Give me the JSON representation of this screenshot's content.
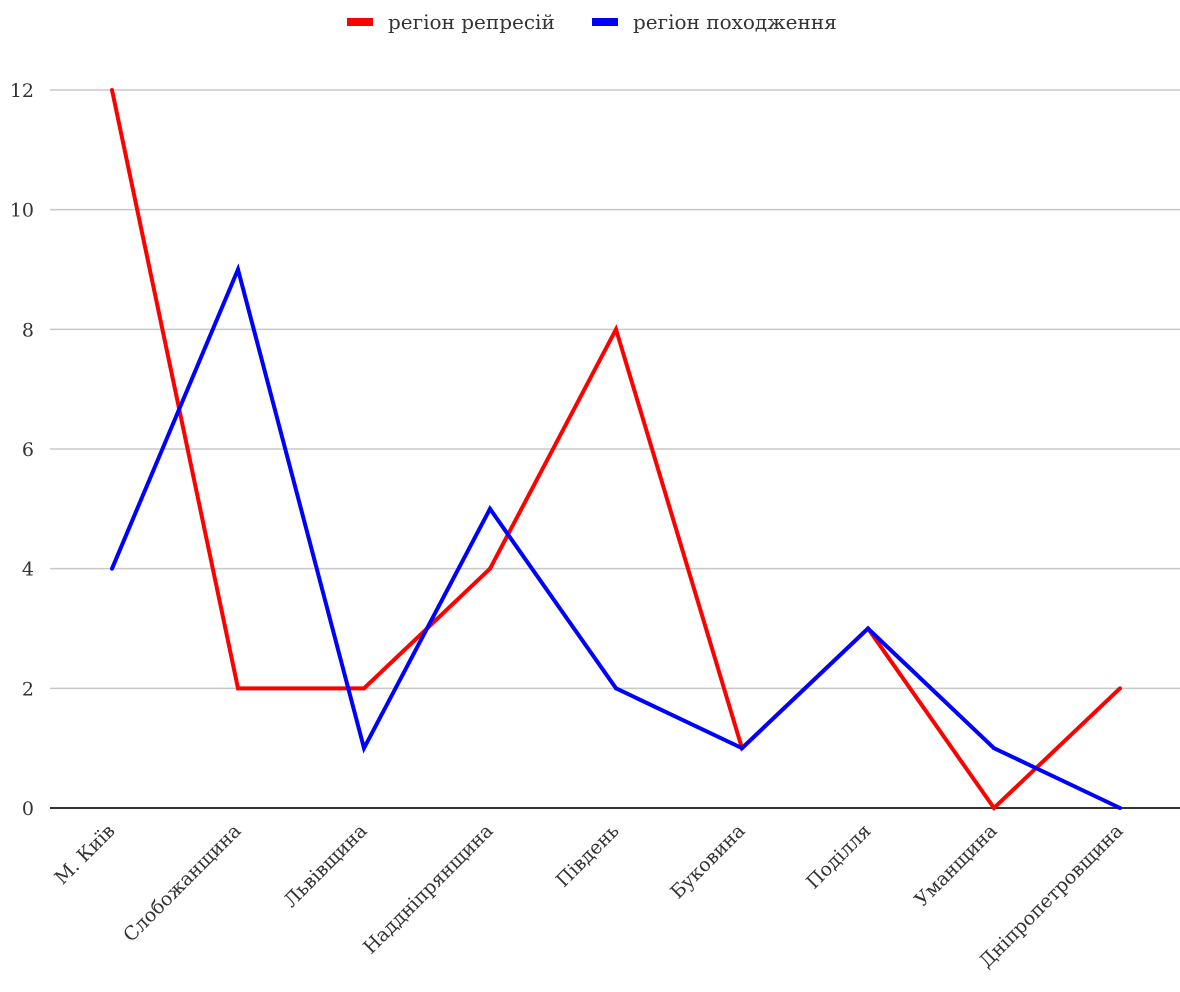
{
  "chart_data": {
    "type": "line",
    "title": "",
    "xlabel": "",
    "ylabel": "",
    "categories": [
      "М. Київ",
      "Слобожанщина",
      "Львівщина",
      "Наддніпрянщина",
      "Південь",
      "Буковина",
      "Поділля",
      "Уманщина",
      "Дніпропетровщина"
    ],
    "series": [
      {
        "name": "регіон репресій",
        "color": "#ff0000",
        "values": [
          12,
          2,
          2,
          4,
          8,
          1,
          3,
          0,
          2
        ]
      },
      {
        "name": "регіон походження",
        "color": "#0000ff",
        "values": [
          4,
          9,
          1,
          5,
          2,
          1,
          3,
          1,
          0
        ]
      }
    ],
    "ylim": [
      0,
      12
    ],
    "yticks": [
      0,
      2,
      4,
      6,
      8,
      10,
      12
    ],
    "grid": true,
    "legend_position": "top-center"
  }
}
